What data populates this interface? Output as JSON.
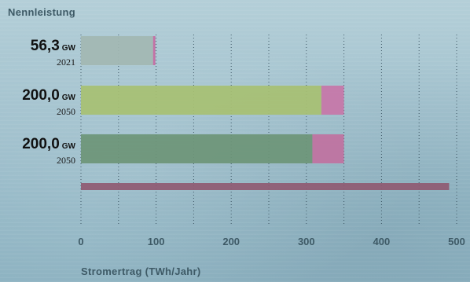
{
  "header": {
    "title": "Nennleistung"
  },
  "chart_data": {
    "type": "bar",
    "orientation": "horizontal",
    "stacked": true,
    "xlabel": "Stromertrag (TWh/Jahr)",
    "xlim": [
      0,
      500
    ],
    "xticks": [
      "0",
      "100",
      "200",
      "300",
      "400",
      "500"
    ],
    "grid": "vertical dotted lines",
    "rows": [
      {
        "value_label": "56,3",
        "unit": "GW",
        "year": "2021",
        "segments": [
          {
            "value": 96,
            "color": "#a2b7b2"
          },
          {
            "value": 3,
            "color": "#c66aa2"
          }
        ]
      },
      {
        "value_label": "200,0",
        "unit": "GW",
        "year": "2050",
        "segments": [
          {
            "value": 320,
            "color": "#a7c072"
          },
          {
            "value": 30,
            "color": "#c776a8"
          }
        ]
      },
      {
        "value_label": "200,0",
        "unit": "GW",
        "year": "2050",
        "segments": [
          {
            "value": 308,
            "color": "#6d9577"
          },
          {
            "value": 42,
            "color": "#c071a0"
          }
        ]
      },
      {
        "value_label": "",
        "unit": "",
        "year": "",
        "segments": [
          {
            "value": 490,
            "color": "#8f5a72"
          }
        ]
      }
    ]
  }
}
